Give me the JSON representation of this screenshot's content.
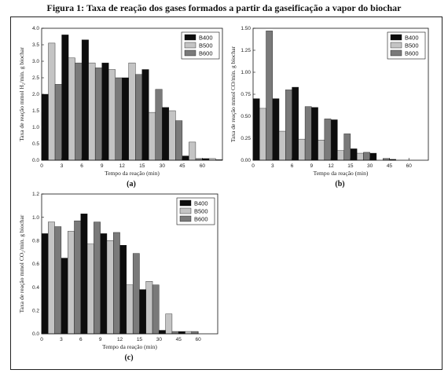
{
  "figure": {
    "title": "Figura 1: Taxa de reação dos gases formados a partir da gaseificação a vapor do biochar"
  },
  "colors": {
    "B400": "#0d0d0d",
    "B500": "#c4c4c4",
    "B600": "#7a7a7a"
  },
  "chart_data": [
    {
      "type": "bar",
      "panel_label": "(a)",
      "xlabel": "Tempo da reação (min)",
      "ylabel": "Taxa de reação mmol H₂/min. g biochar",
      "categories": [
        "0",
        "3",
        "6",
        "9",
        "12",
        "15",
        "30",
        "45",
        "60"
      ],
      "ylim": [
        0,
        4.0
      ],
      "yticks": [
        "0.0",
        "0.5",
        "1.0",
        "1.5",
        "2.0",
        "2.5",
        "3.0",
        "3.5",
        "4.0"
      ],
      "legend": "top-right",
      "series": [
        {
          "name": "B400",
          "values": [
            2.0,
            3.8,
            3.65,
            2.95,
            2.5,
            2.75,
            1.6,
            0.13,
            0.05
          ]
        },
        {
          "name": "B500",
          "values": [
            3.55,
            3.1,
            2.95,
            2.75,
            2.95,
            1.45,
            1.5,
            0.55,
            0.05
          ]
        },
        {
          "name": "B600",
          "values": [
            2.3,
            2.95,
            2.8,
            2.5,
            2.6,
            2.15,
            1.2,
            0.05,
            0.02
          ]
        }
      ]
    },
    {
      "type": "bar",
      "panel_label": "(b)",
      "xlabel": "Tempo da reação (min)",
      "ylabel": "Taxa de reação mmol CO/min. g biochar",
      "categories": [
        "0",
        "3",
        "6",
        "9",
        "12",
        "15",
        "30",
        "45",
        "60"
      ],
      "ylim": [
        0,
        1.5
      ],
      "yticks": [
        "0.00",
        "0.25",
        "0.50",
        "0.75",
        "1.00",
        "1.25",
        "1.50"
      ],
      "legend": "top-right",
      "series": [
        {
          "name": "B400",
          "values": [
            0.7,
            0.7,
            0.83,
            0.6,
            0.46,
            0.13,
            0.08,
            0.01,
            0.0
          ]
        },
        {
          "name": "B500",
          "values": [
            0.59,
            0.33,
            0.24,
            0.23,
            0.11,
            0.08,
            0.0,
            0.0,
            0.0
          ]
        },
        {
          "name": "B600",
          "values": [
            1.47,
            0.8,
            0.61,
            0.47,
            0.3,
            0.09,
            0.02,
            0.0,
            0.0
          ]
        }
      ]
    },
    {
      "type": "bar",
      "panel_label": "(c)",
      "xlabel": "Tempo da reação (min)",
      "ylabel": "Taxa de reação mmol CO₂/min. g biochar",
      "categories": [
        "0",
        "3",
        "6",
        "9",
        "12",
        "15",
        "30",
        "45",
        "60"
      ],
      "ylim": [
        0,
        1.2
      ],
      "yticks": [
        "0.0",
        "0.2",
        "0.4",
        "0.6",
        "0.8",
        "1.0",
        "1.2"
      ],
      "legend": "top-right",
      "series": [
        {
          "name": "B400",
          "values": [
            0.86,
            0.65,
            1.03,
            0.86,
            0.76,
            0.38,
            0.03,
            0.02,
            0.0
          ]
        },
        {
          "name": "B500",
          "values": [
            0.96,
            0.88,
            0.77,
            0.8,
            0.42,
            0.45,
            0.17,
            0.02,
            0.0
          ]
        },
        {
          "name": "B600",
          "values": [
            0.92,
            0.97,
            0.96,
            0.87,
            0.69,
            0.42,
            0.02,
            0.02,
            0.0
          ]
        }
      ]
    }
  ]
}
